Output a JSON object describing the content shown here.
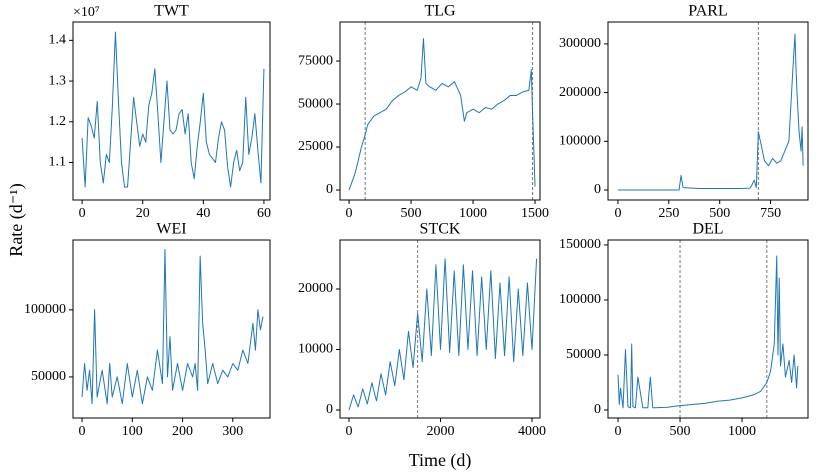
{
  "xlabel": "Time (d)",
  "ylabel": "Rate (d⁻¹)",
  "chart_data": [
    {
      "type": "line",
      "title": "TWT",
      "offset_label": "×10⁷",
      "color": "#1f77b4",
      "x": [
        0,
        1,
        2,
        3,
        4,
        5,
        6,
        7,
        8,
        9,
        10,
        11,
        12,
        13,
        14,
        15,
        16,
        17,
        18,
        19,
        20,
        21,
        22,
        23,
        24,
        25,
        26,
        27,
        28,
        29,
        30,
        31,
        32,
        33,
        34,
        35,
        36,
        37,
        38,
        39,
        40,
        41,
        42,
        43,
        44,
        45,
        46,
        47,
        48,
        49,
        50,
        51,
        52,
        53,
        54,
        55,
        56,
        57,
        58,
        59,
        60
      ],
      "values": [
        1.16,
        1.04,
        1.21,
        1.19,
        1.16,
        1.25,
        1.1,
        1.05,
        1.12,
        1.1,
        1.24,
        1.42,
        1.25,
        1.1,
        1.04,
        1.04,
        1.15,
        1.26,
        1.2,
        1.14,
        1.17,
        1.15,
        1.24,
        1.27,
        1.33,
        1.22,
        1.1,
        1.2,
        1.3,
        1.18,
        1.17,
        1.18,
        1.22,
        1.23,
        1.17,
        1.22,
        1.1,
        1.06,
        1.14,
        1.2,
        1.27,
        1.15,
        1.12,
        1.11,
        1.1,
        1.16,
        1.2,
        1.18,
        1.09,
        1.04,
        1.1,
        1.13,
        1.08,
        1.1,
        1.26,
        1.12,
        1.16,
        1.22,
        1.13,
        1.05,
        1.33
      ],
      "xlim": [
        -3,
        62
      ],
      "ylim": [
        1.008,
        1.445
      ],
      "xticks": [
        0,
        20,
        40,
        60
      ],
      "yticks": [
        1.1,
        1.2,
        1.3,
        1.4
      ],
      "vlines": []
    },
    {
      "type": "line",
      "title": "TLG",
      "color": "#1f77b4",
      "x": [
        0,
        50,
        100,
        130,
        150,
        200,
        250,
        300,
        350,
        400,
        450,
        500,
        550,
        580,
        600,
        620,
        650,
        700,
        750,
        800,
        850,
        900,
        930,
        950,
        1000,
        1050,
        1100,
        1150,
        1200,
        1250,
        1300,
        1350,
        1400,
        1450,
        1470,
        1480,
        1500
      ],
      "values": [
        0,
        10000,
        25000,
        32000,
        38000,
        43000,
        45000,
        47000,
        52000,
        55000,
        57000,
        60000,
        58000,
        65000,
        88000,
        62000,
        60000,
        58000,
        62000,
        60000,
        63000,
        55000,
        40000,
        45000,
        47000,
        45000,
        48000,
        47000,
        50000,
        52000,
        55000,
        55000,
        57000,
        58000,
        70000,
        45000,
        2000
      ],
      "xlim": [
        -73,
        1540
      ],
      "ylim": [
        -5800,
        97700
      ],
      "xticks": [
        0,
        500,
        1000,
        1500
      ],
      "yticks": [
        0,
        25000,
        50000,
        75000
      ],
      "vlines": [
        130,
        1480
      ]
    },
    {
      "type": "line",
      "title": "PARL",
      "color": "#1f77b4",
      "x": [
        0,
        100,
        200,
        300,
        310,
        320,
        400,
        500,
        600,
        650,
        670,
        680,
        690,
        700,
        720,
        740,
        760,
        780,
        800,
        820,
        840,
        860,
        870,
        875,
        880,
        890,
        900,
        905,
        910
      ],
      "values": [
        0,
        0,
        0,
        0,
        30000,
        5000,
        3000,
        3000,
        3000,
        4000,
        20000,
        5000,
        120000,
        100000,
        60000,
        50000,
        65000,
        55000,
        60000,
        80000,
        100000,
        250000,
        320000,
        250000,
        200000,
        120000,
        80000,
        130000,
        50000
      ],
      "xlim": [
        -49,
        934
      ],
      "ylim": [
        -20500,
        345000
      ],
      "xticks": [
        0,
        250,
        500,
        750
      ],
      "yticks": [
        0,
        100000,
        200000,
        300000
      ],
      "vlines": [
        690
      ]
    },
    {
      "type": "line",
      "title": "WEI",
      "color": "#1f77b4",
      "x": [
        0,
        5,
        10,
        15,
        20,
        25,
        30,
        40,
        50,
        55,
        60,
        70,
        80,
        90,
        100,
        110,
        120,
        130,
        140,
        150,
        160,
        165,
        170,
        175,
        180,
        190,
        200,
        210,
        220,
        225,
        230,
        235,
        240,
        245,
        250,
        260,
        270,
        280,
        290,
        300,
        310,
        320,
        330,
        340,
        345,
        350,
        355,
        360
      ],
      "values": [
        35000,
        60000,
        40000,
        55000,
        30000,
        100000,
        35000,
        55000,
        30000,
        60000,
        35000,
        50000,
        30000,
        60000,
        35000,
        55000,
        30000,
        50000,
        40000,
        70000,
        45000,
        145000,
        50000,
        80000,
        40000,
        60000,
        40000,
        60000,
        50000,
        60000,
        40000,
        140000,
        90000,
        70000,
        45000,
        60000,
        45000,
        55000,
        50000,
        60000,
        55000,
        70000,
        60000,
        90000,
        70000,
        100000,
        85000,
        95000
      ],
      "xlim": [
        -18,
        374
      ],
      "ylim": [
        19400,
        152000
      ],
      "xticks": [
        0,
        100,
        200,
        300
      ],
      "yticks": [
        50000,
        100000
      ],
      "vlines": []
    },
    {
      "type": "line",
      "title": "STCK",
      "color": "#1f77b4",
      "x": [
        0,
        100,
        200,
        300,
        400,
        500,
        600,
        700,
        800,
        900,
        1000,
        1100,
        1200,
        1300,
        1400,
        1500,
        1600,
        1700,
        1800,
        1900,
        2000,
        2100,
        2200,
        2300,
        2400,
        2500,
        2600,
        2700,
        2800,
        2900,
        3000,
        3100,
        3200,
        3300,
        3400,
        3500,
        3600,
        3700,
        3800,
        3900,
        4000,
        4100
      ],
      "values": [
        0,
        2500,
        500,
        3500,
        1000,
        4500,
        1500,
        6000,
        2500,
        8000,
        4000,
        10000,
        5000,
        13000,
        7000,
        16000,
        8000,
        20000,
        9000,
        24000,
        10000,
        25000,
        9500,
        23000,
        9000,
        24000,
        10000,
        23000,
        9000,
        22000,
        10000,
        23000,
        8500,
        21000,
        9000,
        22000,
        8000,
        20000,
        9000,
        21000,
        10000,
        25000
      ],
      "xlim": [
        -197,
        4175
      ],
      "ylim": [
        -1320,
        28100
      ],
      "xticks": [
        0,
        2000,
        4000
      ],
      "yticks": [
        0,
        10000,
        20000
      ],
      "vlines": [
        1500
      ]
    },
    {
      "type": "line",
      "title": "DEL",
      "color": "#1f77b4",
      "x": [
        0,
        10,
        20,
        40,
        60,
        80,
        100,
        110,
        120,
        140,
        160,
        200,
        240,
        260,
        280,
        300,
        400,
        500,
        600,
        700,
        800,
        900,
        1000,
        1100,
        1150,
        1200,
        1230,
        1260,
        1280,
        1290,
        1300,
        1310,
        1330,
        1350,
        1380,
        1400,
        1420,
        1440,
        1450
      ],
      "values": [
        32000,
        5000,
        20000,
        2000,
        55000,
        3000,
        2000,
        60000,
        3000,
        2000,
        30000,
        2000,
        2000,
        30000,
        2000,
        2000,
        2500,
        4000,
        5000,
        6000,
        8000,
        9000,
        11000,
        14000,
        17000,
        25000,
        35000,
        60000,
        140000,
        50000,
        120000,
        40000,
        60000,
        30000,
        45000,
        25000,
        50000,
        20000,
        40000
      ],
      "xlim": [
        -81,
        1532
      ],
      "ylim": [
        -7270,
        154500
      ],
      "xticks": [
        0,
        500,
        1000
      ],
      "yticks": [
        0,
        50000,
        100000,
        150000
      ],
      "vlines": [
        500,
        1200
      ]
    }
  ]
}
